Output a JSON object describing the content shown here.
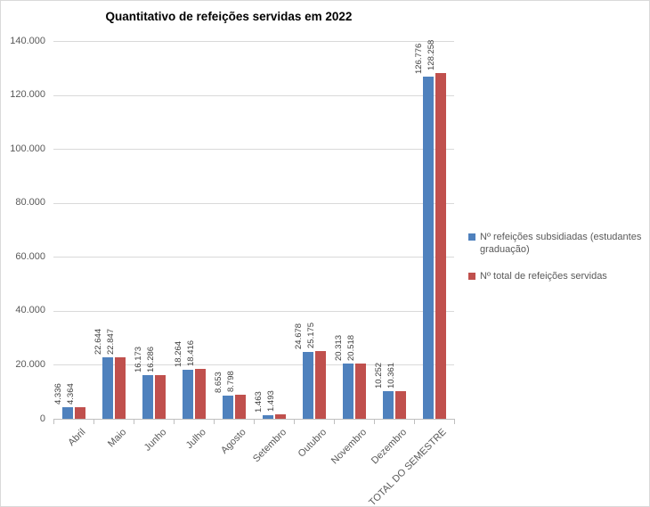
{
  "window": {
    "background": "#FFFFFF",
    "border_color": "#D9D9D9"
  },
  "chart_data": {
    "type": "bar",
    "title": "Quantitativo de refeições servidas em 2022",
    "categories": [
      "Abril",
      "Maio",
      "Junho",
      "Julho",
      "Agosto",
      "Setembro",
      "Outubro",
      "Novembro",
      "Dezembro",
      "TOTAL DO SEMESTRE"
    ],
    "series": [
      {
        "name": "Nº refeições subsidiadas (estudantes graduação)",
        "color": "#4F81BD",
        "values": [
          4336,
          22644,
          16173,
          18264,
          8653,
          1463,
          24678,
          20313,
          10252,
          126776
        ],
        "labels": [
          "4.336",
          "22.644",
          "16.173",
          "18.264",
          "8.653",
          "1.463",
          "24.678",
          "20.313",
          "10.252",
          "126.776"
        ]
      },
      {
        "name": "Nº total de refeições servidas",
        "color": "#C0504D",
        "values": [
          4364,
          22847,
          16286,
          18416,
          8798,
          1493,
          25175,
          20518,
          10361,
          128258
        ],
        "labels": [
          "4.364",
          "22.847",
          "16.286",
          "18.416",
          "8.798",
          "1.493",
          "25.175",
          "20.518",
          "10.361",
          "128.258"
        ]
      }
    ],
    "ylim": [
      0,
      140000
    ],
    "ytick_step": 20000,
    "ytick_labels": [
      "0",
      "20.000",
      "40.000",
      "60.000",
      "80.000",
      "100.000",
      "120.000",
      "140.000"
    ],
    "grid": true,
    "legend_position": "right",
    "gridline_color": "#D9D9D9",
    "axis_color": "#BFBFBF",
    "value_label_color": "#404040",
    "tick_label_color": "#595959"
  }
}
